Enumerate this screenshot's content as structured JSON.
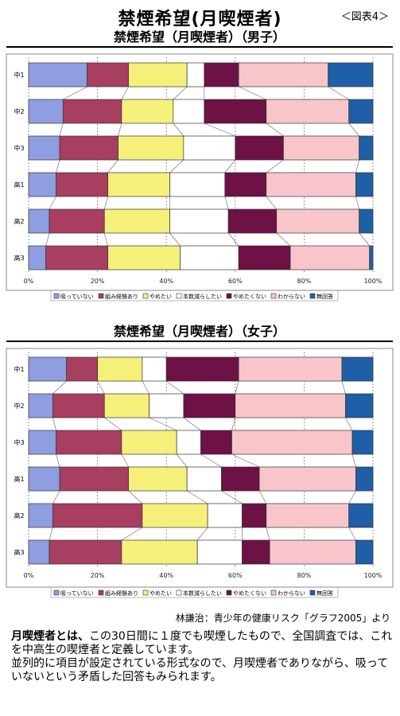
{
  "page": {
    "title": "禁煙希望(月喫煙者)",
    "figure_label": "＜図表4＞",
    "source_note": "林謙治：青少年の健康リスク「グラフ2005」より",
    "note": {
      "term": "月喫煙者とは、",
      "definition": "この30日間に１度でも喫煙したもので、全国調査では、これを中高生の喫煙者と定義しています。",
      "line2": "並列的に項目が設定されている形式なので、月喫煙者でありながら、吸っていないという矛盾した回答もみられます。"
    }
  },
  "chart_data": [
    {
      "type": "bar",
      "orientation": "horizontal",
      "stacked": "100%",
      "title": "禁煙希望（月喫煙者）（男子）",
      "categories": [
        "中1",
        "中2",
        "中3",
        "高1",
        "高2",
        "高3"
      ],
      "xlim": [
        0,
        100
      ],
      "x_ticks": [
        "0%",
        "20%",
        "40%",
        "60%",
        "80%",
        "100%"
      ],
      "legend_position": "bottom",
      "series": [
        {
          "name": "吸っていない",
          "color": "#8f9ee0",
          "values": [
            17,
            10,
            9,
            8,
            6,
            5
          ]
        },
        {
          "name": "組み経験あり",
          "color": "#a83e60",
          "values": [
            12,
            17,
            17,
            15,
            16,
            18
          ]
        },
        {
          "name": "やめたい",
          "color": "#f5f07a",
          "values": [
            17,
            15,
            19,
            18,
            19,
            21
          ]
        },
        {
          "name": "本数減らしたい",
          "color": "#ffffff",
          "values": [
            5,
            9,
            15,
            16,
            17,
            17
          ]
        },
        {
          "name": "やめたくない",
          "color": "#6e1145",
          "values": [
            10,
            18,
            14,
            12,
            14,
            15
          ]
        },
        {
          "name": "わからない",
          "color": "#f8c6ca",
          "values": [
            26,
            24,
            22,
            26,
            24,
            23
          ]
        },
        {
          "name": "無回答",
          "color": "#1f5fa8",
          "values": [
            13,
            7,
            4,
            5,
            4,
            1
          ]
        }
      ]
    },
    {
      "type": "bar",
      "orientation": "horizontal",
      "stacked": "100%",
      "title": "禁煙希望（月喫煙者）（女子）",
      "categories": [
        "中1",
        "中2",
        "中3",
        "高1",
        "高2",
        "高3"
      ],
      "xlim": [
        0,
        100
      ],
      "x_ticks": [
        "0%",
        "20%",
        "40%",
        "60%",
        "80%",
        "100%"
      ],
      "legend_position": "bottom",
      "series": [
        {
          "name": "吸っていない",
          "color": "#8f9ee0",
          "values": [
            11,
            7,
            8,
            9,
            7,
            6
          ]
        },
        {
          "name": "組み経験あり",
          "color": "#a83e60",
          "values": [
            9,
            15,
            19,
            20,
            26,
            21
          ]
        },
        {
          "name": "やめたい",
          "color": "#f5f07a",
          "values": [
            13,
            13,
            16,
            17,
            19,
            22
          ]
        },
        {
          "name": "本数減らしたい",
          "color": "#ffffff",
          "values": [
            7,
            10,
            7,
            10,
            10,
            13
          ]
        },
        {
          "name": "やめたくない",
          "color": "#6e1145",
          "values": [
            21,
            15,
            9,
            11,
            7,
            8
          ]
        },
        {
          "name": "わからない",
          "color": "#f8c6ca",
          "values": [
            30,
            32,
            35,
            28,
            24,
            25
          ]
        },
        {
          "name": "無回答",
          "color": "#1f5fa8",
          "values": [
            9,
            8,
            6,
            5,
            7,
            5
          ]
        }
      ]
    }
  ]
}
